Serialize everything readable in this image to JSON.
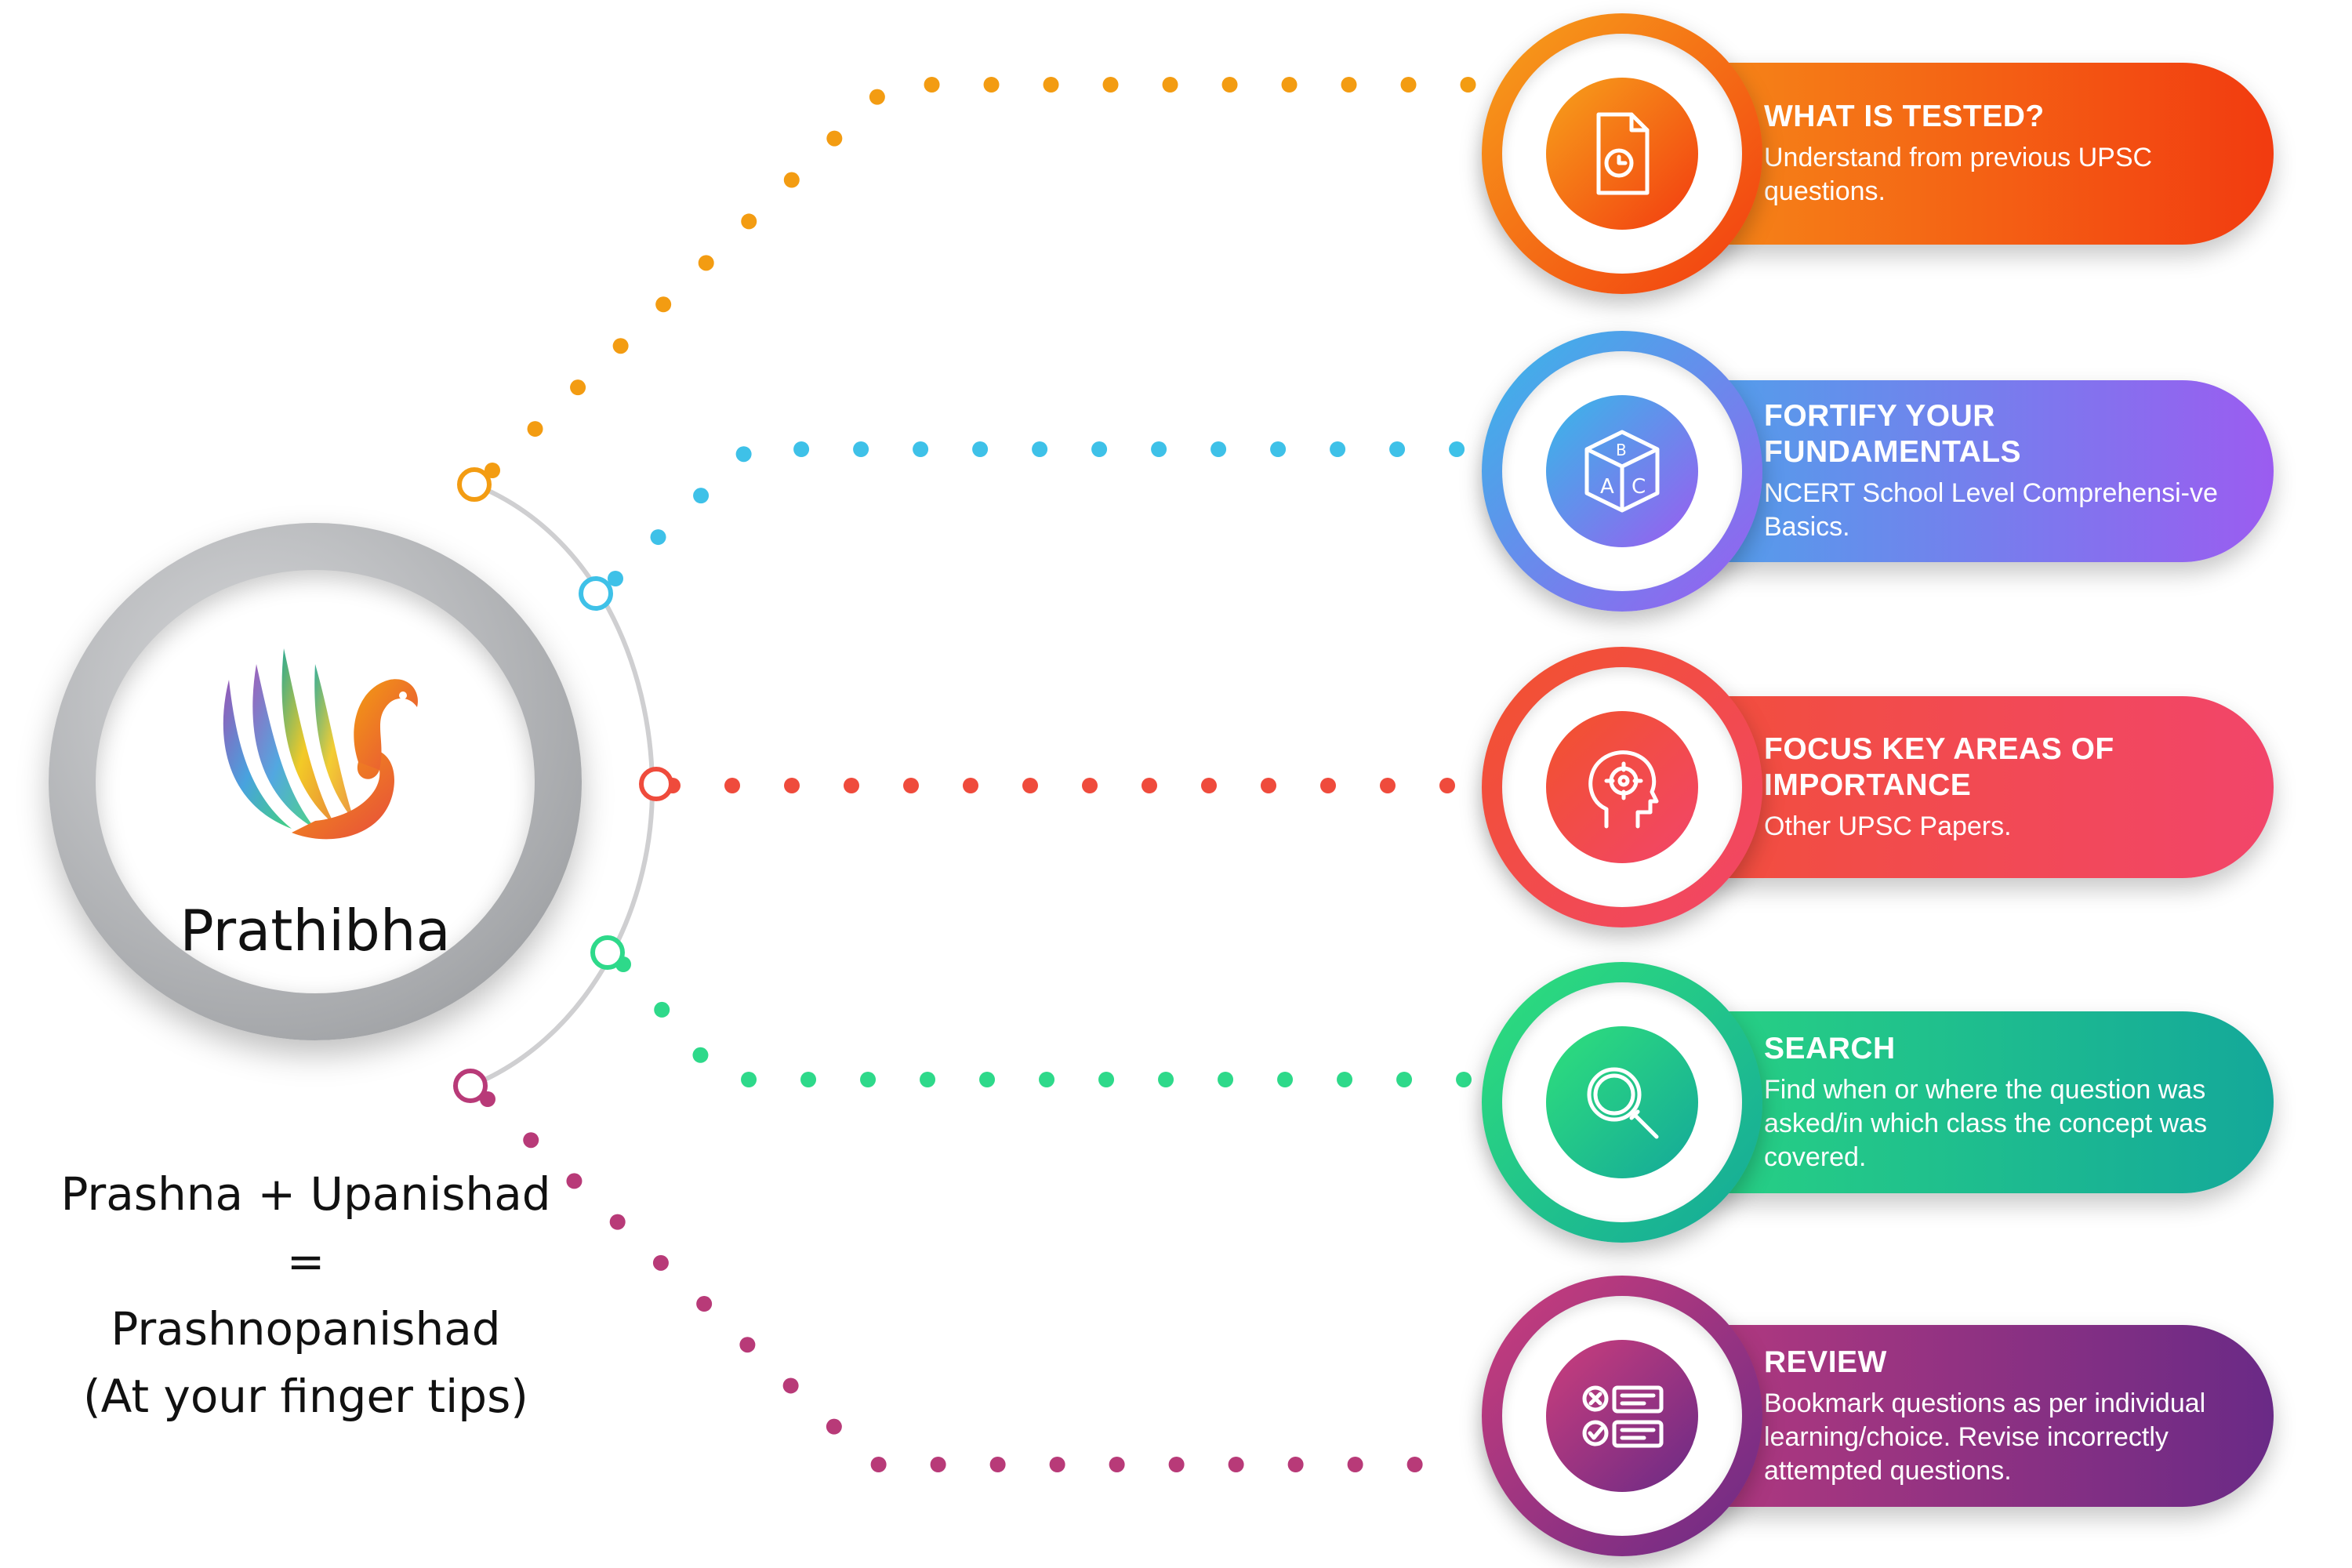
{
  "brand": {
    "name": "Prathibha"
  },
  "caption": {
    "line1": "Prashna + Upanishad",
    "line2": "=",
    "line3": "Prashnopanishad",
    "line4": "(At your finger tips)"
  },
  "steps": [
    {
      "title": "WHAT IS TESTED?",
      "description": "Understand from previous UPSC questions.",
      "icon": "clock-document-icon",
      "color": "#F39C12",
      "gradient": [
        "#F7A21B",
        "#F23B10"
      ]
    },
    {
      "title": "FORTIFY YOUR FUNDAMENTALS",
      "description": "NCERT School Level Comprehensi-ve Basics.",
      "icon": "abc-cube-icon",
      "color": "#3EC1E8",
      "gradient": [
        "#36B9E8",
        "#9B5CF0"
      ]
    },
    {
      "title": "FOCUS KEY AREAS OF IMPORTANCE",
      "description": "Other UPSC Papers.",
      "icon": "head-target-icon",
      "color": "#EF4B3C",
      "gradient": [
        "#F2522C",
        "#F2456A"
      ]
    },
    {
      "title": "SEARCH",
      "description": "Find when or where the question was asked/in which class the concept was covered.",
      "icon": "magnifier-icon",
      "color": "#2ED98A",
      "gradient": [
        "#2FE07B",
        "#14A89A"
      ]
    },
    {
      "title": "REVIEW",
      "description": "Bookmark questions as per individual learning/choice. Revise incorrectly attempted questions.",
      "icon": "checklist-icon",
      "color": "#B83A78",
      "gradient": [
        "#CC3E7C",
        "#6A2A86"
      ]
    }
  ]
}
